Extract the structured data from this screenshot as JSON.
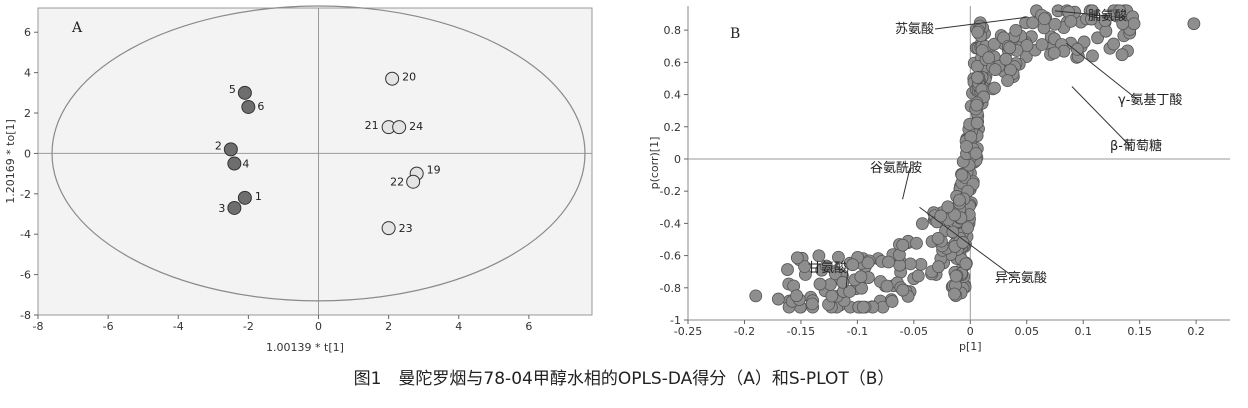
{
  "caption": "图1　曼陀罗烟与78-04甲醇水相的OPLS-DA得分（A）和S-PLOT（B）",
  "chart_data": [
    {
      "type": "scatter",
      "panel_label": "A",
      "xlabel": "1.00139 * t[1]",
      "ylabel": "1.20169 * to[1]",
      "xlim": [
        -8,
        7.8
      ],
      "ylim": [
        -8,
        7.2
      ],
      "xticks": [
        -8,
        -6,
        -4,
        -2,
        0,
        2,
        4,
        6
      ],
      "yticks": [
        -8,
        -6,
        -4,
        -2,
        0,
        2,
        4,
        6
      ],
      "series": [
        {
          "group": "dark",
          "color": "#6e6e6e",
          "points": [
            {
              "label": "1",
              "x": -2.1,
              "y": -2.2
            },
            {
              "label": "2",
              "x": -2.5,
              "y": 0.2
            },
            {
              "label": "3",
              "x": -2.4,
              "y": -2.7
            },
            {
              "label": "4",
              "x": -2.4,
              "y": -0.5
            },
            {
              "label": "5",
              "x": -2.1,
              "y": 3.0
            },
            {
              "label": "6",
              "x": -2.0,
              "y": 2.3
            }
          ]
        },
        {
          "group": "light",
          "color": "#e4e4e4",
          "points": [
            {
              "label": "19",
              "x": 2.8,
              "y": -1.0
            },
            {
              "label": "20",
              "x": 2.1,
              "y": 3.7
            },
            {
              "label": "21",
              "x": 2.0,
              "y": 1.3
            },
            {
              "label": "22",
              "x": 2.7,
              "y": -1.4
            },
            {
              "label": "23",
              "x": 2.0,
              "y": -3.7
            },
            {
              "label": "24",
              "x": 2.3,
              "y": 1.3
            }
          ]
        }
      ],
      "ellipse": {
        "cx": 0,
        "cy": 0,
        "rx": 7.6,
        "ry": 7.3
      }
    },
    {
      "type": "scatter",
      "panel_label": "B",
      "xlabel": "p[1]",
      "ylabel": "p(corr)[1]",
      "xlim": [
        -0.25,
        0.23
      ],
      "ylim": [
        -1,
        0.95
      ],
      "xticks": [
        -0.25,
        -0.2,
        -0.15,
        -0.1,
        -0.05,
        0,
        0.05,
        0.1,
        0.15,
        0.2
      ],
      "xtick_labels": [
        "-0.25",
        "-0.2",
        "-0.15",
        "-0.1",
        "-0.05",
        "0",
        "0.05",
        "0.1",
        "0.15",
        "0.2"
      ],
      "yticks": [
        -1,
        -0.8,
        -0.6,
        -0.4,
        -0.2,
        0,
        0.2,
        0.4,
        0.6,
        0.8
      ],
      "ytick_labels": [
        "-1",
        "-0.8",
        "-0.6",
        "-0.4",
        "-0.2",
        "0",
        "0.2",
        "0.4",
        "0.6",
        "0.8"
      ],
      "point_color": "#8e8e8e",
      "annotations": [
        {
          "text": "苏氨酸",
          "x": 0.05,
          "y": 0.88
        },
        {
          "text": "脯氨酸",
          "x": 0.075,
          "y": 0.92
        },
        {
          "text": "γ-氨基丁酸",
          "x": 0.085,
          "y": 0.72
        },
        {
          "text": "β-葡萄糖",
          "x": 0.09,
          "y": 0.45
        },
        {
          "text": "谷氨酰胺",
          "x": -0.06,
          "y": -0.25
        },
        {
          "text": "异亮氨酸",
          "x": -0.045,
          "y": -0.3
        },
        {
          "text": "甘氨酸",
          "x": -0.11,
          "y": -0.8
        }
      ]
    }
  ]
}
